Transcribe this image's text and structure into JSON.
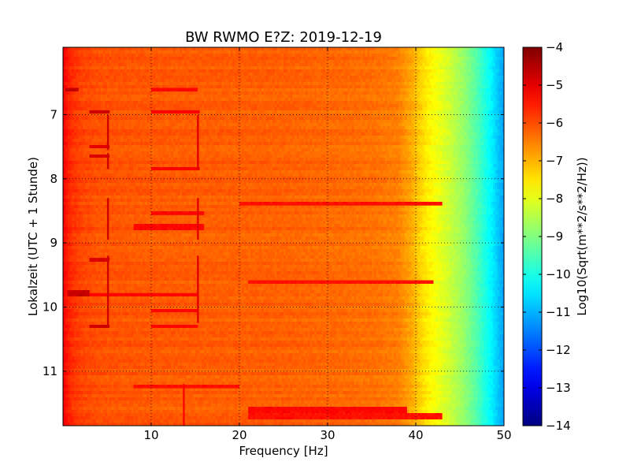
{
  "chart_data": {
    "type": "heatmap",
    "title": "BW RWMO E?Z: 2019-12-19",
    "xlabel": "Frequency [Hz]",
    "ylabel": "Lokalzeit (UTC + 1 Stunde)",
    "colorbar_label": "Log10(Sqrt(m**2/s**2/Hz))",
    "xlim": [
      0,
      50
    ],
    "ylim": [
      5.95,
      11.85
    ],
    "y_inverted": true,
    "clim": [
      -14,
      -4
    ],
    "colormap": "jet",
    "grid": true,
    "x_ticks": [
      {
        "value": 10,
        "label": "10"
      },
      {
        "value": 20,
        "label": "20"
      },
      {
        "value": 30,
        "label": "30"
      },
      {
        "value": 40,
        "label": "40"
      },
      {
        "value": 50,
        "label": "50"
      }
    ],
    "y_ticks": [
      {
        "value": 7,
        "label": "7"
      },
      {
        "value": 8,
        "label": "8"
      },
      {
        "value": 9,
        "label": "9"
      },
      {
        "value": 10,
        "label": "10"
      },
      {
        "value": 11,
        "label": "11"
      }
    ],
    "colorbar_ticks": [
      {
        "value": -4,
        "label": "−4"
      },
      {
        "value": -5,
        "label": "−5"
      },
      {
        "value": -6,
        "label": "−6"
      },
      {
        "value": -7,
        "label": "−7"
      },
      {
        "value": -8,
        "label": "−8"
      },
      {
        "value": -9,
        "label": "−9"
      },
      {
        "value": -10,
        "label": "−10"
      },
      {
        "value": -11,
        "label": "−11"
      },
      {
        "value": -12,
        "label": "−12"
      },
      {
        "value": -13,
        "label": "−13"
      },
      {
        "value": -14,
        "label": "−14"
      }
    ],
    "spectral_profile": {
      "freq": [
        0,
        0.5,
        1,
        2,
        4,
        8,
        15,
        25,
        35,
        38,
        39.5,
        41,
        42.5,
        44,
        45.5,
        47,
        48.5,
        50
      ],
      "value": [
        -5.2,
        -5.5,
        -5.7,
        -5.9,
        -6.05,
        -6.1,
        -6.15,
        -6.2,
        -6.35,
        -6.5,
        -6.9,
        -7.5,
        -7.9,
        -8.3,
        -8.8,
        -9.5,
        -10.3,
        -11.2
      ]
    },
    "vertical_lines": [
      {
        "freq": 5.1,
        "t_start": 7.0,
        "t_end": 7.55,
        "value": -4.8
      },
      {
        "freq": 5.1,
        "t_start": 7.6,
        "t_end": 7.85,
        "value": -4.8
      },
      {
        "freq": 5.1,
        "t_start": 8.3,
        "t_end": 8.95,
        "value": -4.8
      },
      {
        "freq": 5.1,
        "t_start": 9.2,
        "t_end": 10.3,
        "value": -4.8
      },
      {
        "freq": 15.3,
        "t_start": 7.0,
        "t_end": 7.85,
        "value": -5.0
      },
      {
        "freq": 15.3,
        "t_start": 8.3,
        "t_end": 8.95,
        "value": -5.0
      },
      {
        "freq": 15.3,
        "t_start": 9.2,
        "t_end": 10.25,
        "value": -5.0
      },
      {
        "freq": 13.7,
        "t_start": 11.2,
        "t_end": 11.85,
        "value": -5.3
      }
    ],
    "horizontal_bands": [
      {
        "t": 6.6,
        "f_start": 0.3,
        "f_end": 1.8,
        "value": -4.7
      },
      {
        "t": 6.6,
        "f_start": 10,
        "f_end": 15.3,
        "value": -5.3
      },
      {
        "t": 6.95,
        "f_start": 3,
        "f_end": 5.3,
        "value": -4.8
      },
      {
        "t": 6.95,
        "f_start": 10,
        "f_end": 15.4,
        "value": -5.2
      },
      {
        "t": 7.5,
        "f_start": 3,
        "f_end": 5.3,
        "value": -5.0
      },
      {
        "t": 7.65,
        "f_start": 3,
        "f_end": 5.3,
        "value": -4.9
      },
      {
        "t": 7.85,
        "f_start": 10,
        "f_end": 15.4,
        "value": -5.2
      },
      {
        "t": 8.4,
        "f_start": 20,
        "f_end": 43,
        "value": -5.4
      },
      {
        "t": 8.55,
        "f_start": 10,
        "f_end": 16,
        "value": -5.3
      },
      {
        "t": 8.75,
        "f_start": 8,
        "f_end": 16,
        "value": -5.3
      },
      {
        "t": 9.25,
        "f_start": 3,
        "f_end": 5.3,
        "value": -4.9
      },
      {
        "t": 9.6,
        "f_start": 21,
        "f_end": 42,
        "value": -5.4
      },
      {
        "t": 9.78,
        "f_start": 0.5,
        "f_end": 3,
        "value": -4.7
      },
      {
        "t": 9.8,
        "f_start": 3,
        "f_end": 15.3,
        "value": -5.3
      },
      {
        "t": 10.05,
        "f_start": 10,
        "f_end": 15.3,
        "value": -5.3
      },
      {
        "t": 10.3,
        "f_start": 3,
        "f_end": 5.3,
        "value": -4.8
      },
      {
        "t": 10.3,
        "f_start": 10,
        "f_end": 15.3,
        "value": -5.3
      },
      {
        "t": 11.25,
        "f_start": 8,
        "f_end": 20,
        "value": -5.4
      },
      {
        "t": 11.6,
        "f_start": 21,
        "f_end": 39,
        "value": -5.3
      },
      {
        "t": 11.7,
        "f_start": 21,
        "f_end": 43,
        "value": -5.4
      }
    ]
  }
}
